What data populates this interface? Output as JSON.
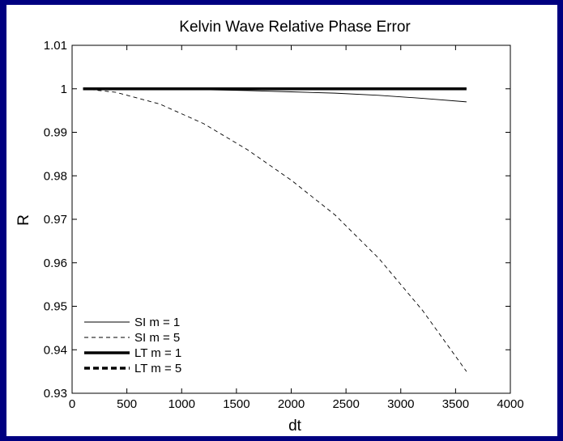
{
  "chart_data": {
    "type": "line",
    "title": "Kelvin Wave Relative Phase Error",
    "xlabel": "dt",
    "ylabel": "R",
    "xlim": [
      0,
      4000
    ],
    "ylim": [
      0.93,
      1.01
    ],
    "x_ticks": [
      0,
      500,
      1000,
      1500,
      2000,
      2500,
      3000,
      3500,
      4000
    ],
    "y_ticks": [
      0.93,
      0.94,
      0.95,
      0.96,
      0.97,
      0.98,
      0.99,
      1,
      1.01
    ],
    "x_tick_labels": [
      "0",
      "500",
      "1000",
      "1500",
      "2000",
      "2500",
      "3000",
      "3500",
      "4000"
    ],
    "y_tick_labels": [
      "0.93",
      "0.94",
      "0.95",
      "0.96",
      "0.97",
      "0.98",
      "0.99",
      "1",
      "1.01"
    ],
    "grid": false,
    "legend_position": "bottom-left",
    "series": [
      {
        "name": "SI m = 1",
        "style": "solid",
        "weight": "thin",
        "x": [
          100,
          400,
          800,
          1200,
          1600,
          2000,
          2400,
          2800,
          3200,
          3600
        ],
        "y": [
          1.0,
          1.0,
          0.9999,
          0.9998,
          0.9996,
          0.9993,
          0.999,
          0.9985,
          0.9978,
          0.997
        ]
      },
      {
        "name": "SI m = 5",
        "style": "dashed",
        "weight": "thin",
        "x": [
          100,
          400,
          800,
          1200,
          1600,
          2000,
          2400,
          2800,
          3200,
          3600
        ],
        "y": [
          1.0,
          0.9992,
          0.9965,
          0.992,
          0.986,
          0.979,
          0.971,
          0.961,
          0.949,
          0.935
        ]
      },
      {
        "name": "LT m = 1",
        "style": "solid",
        "weight": "thick",
        "x": [
          100,
          3600
        ],
        "y": [
          1.0,
          1.0
        ]
      },
      {
        "name": "LT m = 5",
        "style": "dashed",
        "weight": "thick",
        "x": [
          100,
          3600
        ],
        "y": [
          1.0,
          1.0
        ]
      }
    ]
  },
  "colors": {
    "background": "#000080",
    "plot": "#ffffff",
    "ink": "#000000"
  }
}
